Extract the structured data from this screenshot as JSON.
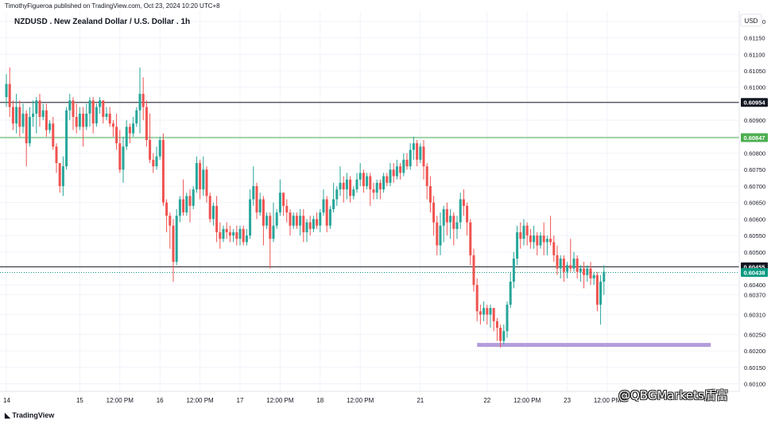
{
  "header": {
    "published": "TimothyFigueroa published on TradingView.com, Oct 23, 2024 10:20 UTC+8"
  },
  "footer": {
    "logo": "TradingView",
    "watermark": "@QBGMarkets盾富"
  },
  "colors": {
    "up": "#26a69a",
    "down": "#ef5350",
    "level_dark": "#131722",
    "level_green": "#4caf50",
    "current": "#089981",
    "zone": "#b39ddb"
  },
  "chart_data": {
    "type": "candlestick",
    "title": "NZDUSD . New Zealand Dollar / U.S. Dollar . 1h",
    "currency": "USD",
    "ylim": [
      0.60077,
      0.61231
    ],
    "yticks": [
      "0.61200",
      "0.61150",
      "0.61100",
      "0.61050",
      "0.61000",
      "0.60950",
      "0.60900",
      "0.60850",
      "0.60800",
      "0.60750",
      "0.60700",
      "0.60650",
      "0.60600",
      "0.60550",
      "0.60500",
      "0.60450",
      "0.60400",
      "0.60370",
      "0.60310",
      "0.60250",
      "0.60200",
      "0.60150",
      "0.60100"
    ],
    "ytick_values": [
      0.612,
      0.6115,
      0.611,
      0.6105,
      0.61,
      0.6095,
      0.609,
      0.6085,
      0.608,
      0.6075,
      0.607,
      0.6065,
      0.606,
      0.6055,
      0.605,
      0.6045,
      0.604,
      0.6037,
      0.6031,
      0.6025,
      0.602,
      0.6015,
      0.601
    ],
    "xticks": [
      {
        "label": "14",
        "bar": 0
      },
      {
        "label": "15",
        "bar": 22
      },
      {
        "label": "12:00 PM",
        "bar": 34
      },
      {
        "label": "16",
        "bar": 46
      },
      {
        "label": "12:00 PM",
        "bar": 58
      },
      {
        "label": "17",
        "bar": 70
      },
      {
        "label": "12:00 PM",
        "bar": 82
      },
      {
        "label": "18",
        "bar": 94
      },
      {
        "label": "12:00 PM",
        "bar": 106
      },
      {
        "label": "21",
        "bar": 124
      },
      {
        "label": "22",
        "bar": 144
      },
      {
        "label": "12:00 PM",
        "bar": 156
      },
      {
        "label": "23",
        "bar": 168
      },
      {
        "label": "12:00 PM",
        "bar": 180
      }
    ],
    "levels": [
      {
        "label": "0.60954",
        "value": 0.60954,
        "style": "dark"
      },
      {
        "label": "0.60847",
        "value": 0.60847,
        "style": "green"
      },
      {
        "label": "0.60455",
        "value": 0.60455,
        "style": "dark"
      },
      {
        "label": "0.60438",
        "value": 0.60438,
        "style": "current"
      }
    ],
    "zone": {
      "value": 0.60218,
      "bar_from": 141,
      "bar_to": 211
    },
    "candles": [
      [
        0.6097,
        0.6101,
        0.6104,
        0.6094
      ],
      [
        0.6101,
        0.6094,
        0.6106,
        0.6091
      ],
      [
        0.6094,
        0.6089,
        0.6096,
        0.6087
      ],
      [
        0.6089,
        0.6094,
        0.6098,
        0.6086
      ],
      [
        0.6094,
        0.6088,
        0.6096,
        0.6085
      ],
      [
        0.6088,
        0.6092,
        0.6095,
        0.6086
      ],
      [
        0.6092,
        0.6083,
        0.6093,
        0.6076
      ],
      [
        0.6083,
        0.6091,
        0.6094,
        0.6082
      ],
      [
        0.6091,
        0.6092,
        0.6096,
        0.6088
      ],
      [
        0.6092,
        0.6096,
        0.6097,
        0.6086
      ],
      [
        0.6096,
        0.6091,
        0.6098,
        0.6088
      ],
      [
        0.6091,
        0.6093,
        0.6095,
        0.609
      ],
      [
        0.6093,
        0.6087,
        0.6095,
        0.6085
      ],
      [
        0.6087,
        0.6089,
        0.609,
        0.6086
      ],
      [
        0.6089,
        0.6082,
        0.6091,
        0.6081
      ],
      [
        0.6082,
        0.6077,
        0.6083,
        0.6074
      ],
      [
        0.6077,
        0.607,
        0.6077,
        0.6068
      ],
      [
        0.607,
        0.6076,
        0.6079,
        0.6067
      ],
      [
        0.6076,
        0.6093,
        0.6094,
        0.6075
      ],
      [
        0.6093,
        0.6096,
        0.6098,
        0.609
      ],
      [
        0.6096,
        0.6091,
        0.6097,
        0.6087
      ],
      [
        0.6091,
        0.6088,
        0.6095,
        0.6086
      ],
      [
        0.6088,
        0.6092,
        0.6094,
        0.6087
      ],
      [
        0.6092,
        0.6088,
        0.6094,
        0.6082
      ],
      [
        0.6088,
        0.6092,
        0.6095,
        0.6087
      ],
      [
        0.6092,
        0.6096,
        0.6097,
        0.6088
      ],
      [
        0.6096,
        0.6089,
        0.6097,
        0.6086
      ],
      [
        0.6089,
        0.6094,
        0.6095,
        0.6088
      ],
      [
        0.6094,
        0.6096,
        0.6097,
        0.6092
      ],
      [
        0.6096,
        0.6091,
        0.6096,
        0.6089
      ],
      [
        0.6091,
        0.6092,
        0.6094,
        0.609
      ],
      [
        0.6092,
        0.6089,
        0.6094,
        0.6088
      ],
      [
        0.6089,
        0.6088,
        0.609,
        0.6085
      ],
      [
        0.6088,
        0.6083,
        0.6092,
        0.6081
      ],
      [
        0.6083,
        0.6075,
        0.6087,
        0.6074
      ],
      [
        0.6075,
        0.6082,
        0.6085,
        0.6071
      ],
      [
        0.6082,
        0.6088,
        0.609,
        0.6081
      ],
      [
        0.6088,
        0.6086,
        0.6089,
        0.6083
      ],
      [
        0.6086,
        0.6089,
        0.6091,
        0.6085
      ],
      [
        0.6089,
        0.6093,
        0.6094,
        0.6088
      ],
      [
        0.6093,
        0.6098,
        0.6106,
        0.6086
      ],
      [
        0.6098,
        0.6094,
        0.6103,
        0.609
      ],
      [
        0.6094,
        0.6084,
        0.6096,
        0.6082
      ],
      [
        0.6084,
        0.6078,
        0.6092,
        0.6077
      ],
      [
        0.6078,
        0.6076,
        0.608,
        0.6074
      ],
      [
        0.6076,
        0.6079,
        0.6082,
        0.6075
      ],
      [
        0.6079,
        0.6084,
        0.6085,
        0.6078
      ],
      [
        0.6084,
        0.6065,
        0.6086,
        0.6064
      ],
      [
        0.6065,
        0.6061,
        0.6066,
        0.6056
      ],
      [
        0.6061,
        0.6058,
        0.6062,
        0.6051
      ],
      [
        0.6058,
        0.6047,
        0.606,
        0.6041
      ],
      [
        0.6047,
        0.6061,
        0.6063,
        0.6046
      ],
      [
        0.6061,
        0.6066,
        0.6067,
        0.6059
      ],
      [
        0.6066,
        0.6062,
        0.6072,
        0.6061
      ],
      [
        0.6062,
        0.6067,
        0.6068,
        0.6061
      ],
      [
        0.6067,
        0.6064,
        0.6069,
        0.6059
      ],
      [
        0.6064,
        0.6069,
        0.607,
        0.6063
      ],
      [
        0.6069,
        0.6077,
        0.6079,
        0.6068
      ],
      [
        0.6077,
        0.6069,
        0.6078,
        0.6066
      ],
      [
        0.6069,
        0.6075,
        0.6079,
        0.6067
      ],
      [
        0.6075,
        0.6067,
        0.6076,
        0.6065
      ],
      [
        0.6067,
        0.606,
        0.6068,
        0.6059
      ],
      [
        0.606,
        0.6064,
        0.6065,
        0.6058
      ],
      [
        0.6064,
        0.6056,
        0.6067,
        0.6053
      ],
      [
        0.6056,
        0.6054,
        0.6059,
        0.6051
      ],
      [
        0.6054,
        0.6057,
        0.6058,
        0.6053
      ],
      [
        0.6057,
        0.6056,
        0.6059,
        0.6054
      ],
      [
        0.6056,
        0.6055,
        0.6058,
        0.6053
      ],
      [
        0.6055,
        0.6056,
        0.6057,
        0.6053
      ],
      [
        0.6056,
        0.6054,
        0.6058,
        0.6052
      ],
      [
        0.6054,
        0.6057,
        0.6058,
        0.6052
      ],
      [
        0.6057,
        0.6053,
        0.6058,
        0.6052
      ],
      [
        0.6053,
        0.6055,
        0.6057,
        0.6052
      ],
      [
        0.6055,
        0.6066,
        0.6069,
        0.6054
      ],
      [
        0.6066,
        0.607,
        0.6076,
        0.6064
      ],
      [
        0.607,
        0.6062,
        0.6071,
        0.606
      ],
      [
        0.6062,
        0.6066,
        0.6068,
        0.6061
      ],
      [
        0.6066,
        0.6058,
        0.6067,
        0.6052
      ],
      [
        0.6058,
        0.6061,
        0.6062,
        0.6057
      ],
      [
        0.6061,
        0.6054,
        0.6062,
        0.6045
      ],
      [
        0.6054,
        0.6058,
        0.6065,
        0.6053
      ],
      [
        0.6058,
        0.6062,
        0.6063,
        0.6057
      ],
      [
        0.6062,
        0.6068,
        0.6072,
        0.6061
      ],
      [
        0.6068,
        0.6064,
        0.6068,
        0.6061
      ],
      [
        0.6064,
        0.6062,
        0.6066,
        0.6059
      ],
      [
        0.6062,
        0.6058,
        0.6063,
        0.6055
      ],
      [
        0.6058,
        0.6061,
        0.6062,
        0.6057
      ],
      [
        0.6061,
        0.6058,
        0.6062,
        0.6057
      ],
      [
        0.6058,
        0.6061,
        0.6063,
        0.6055
      ],
      [
        0.6061,
        0.6056,
        0.6063,
        0.6053
      ],
      [
        0.6056,
        0.6059,
        0.606,
        0.6053
      ],
      [
        0.6059,
        0.6057,
        0.6061,
        0.6055
      ],
      [
        0.6057,
        0.606,
        0.6061,
        0.6056
      ],
      [
        0.606,
        0.6058,
        0.6062,
        0.6057
      ],
      [
        0.6058,
        0.6062,
        0.6063,
        0.6056
      ],
      [
        0.6062,
        0.6066,
        0.6069,
        0.6061
      ],
      [
        0.6066,
        0.6058,
        0.6067,
        0.6056
      ],
      [
        0.6058,
        0.6063,
        0.6064,
        0.6057
      ],
      [
        0.6063,
        0.6066,
        0.6071,
        0.6062
      ],
      [
        0.6066,
        0.6069,
        0.607,
        0.6064
      ],
      [
        0.6069,
        0.6071,
        0.6076,
        0.6067
      ],
      [
        0.6071,
        0.6069,
        0.6073,
        0.6065
      ],
      [
        0.6069,
        0.6072,
        0.6074,
        0.6066
      ],
      [
        0.6072,
        0.6067,
        0.6073,
        0.6065
      ],
      [
        0.6067,
        0.6069,
        0.607,
        0.6066
      ],
      [
        0.6069,
        0.6072,
        0.6074,
        0.6068
      ],
      [
        0.6072,
        0.6074,
        0.6077,
        0.607
      ],
      [
        0.6074,
        0.607,
        0.6075,
        0.6068
      ],
      [
        0.607,
        0.6073,
        0.6074,
        0.6069
      ],
      [
        0.6073,
        0.6069,
        0.6074,
        0.6064
      ],
      [
        0.6069,
        0.6068,
        0.6071,
        0.6066
      ],
      [
        0.6068,
        0.6071,
        0.6072,
        0.6066
      ],
      [
        0.6071,
        0.6069,
        0.6072,
        0.6066
      ],
      [
        0.6069,
        0.6073,
        0.6074,
        0.6068
      ],
      [
        0.6073,
        0.6071,
        0.6074,
        0.607
      ],
      [
        0.6071,
        0.6075,
        0.6077,
        0.607
      ],
      [
        0.6075,
        0.6073,
        0.6077,
        0.6071
      ],
      [
        0.6073,
        0.6076,
        0.6078,
        0.6072
      ],
      [
        0.6076,
        0.6074,
        0.6077,
        0.6072
      ],
      [
        0.6074,
        0.6078,
        0.608,
        0.6073
      ],
      [
        0.6078,
        0.6076,
        0.608,
        0.6075
      ],
      [
        0.6076,
        0.6081,
        0.6083,
        0.6075
      ],
      [
        0.6081,
        0.6083,
        0.6085,
        0.6078
      ],
      [
        0.6083,
        0.6078,
        0.6084,
        0.6076
      ],
      [
        0.6078,
        0.6082,
        0.6083,
        0.6077
      ],
      [
        0.6082,
        0.6076,
        0.6084,
        0.6072
      ],
      [
        0.6076,
        0.607,
        0.6077,
        0.6066
      ],
      [
        0.607,
        0.6065,
        0.6073,
        0.6062
      ],
      [
        0.6065,
        0.6059,
        0.6067,
        0.6055
      ],
      [
        0.6059,
        0.6052,
        0.6061,
        0.6049
      ],
      [
        0.6052,
        0.6058,
        0.6062,
        0.6049
      ],
      [
        0.6058,
        0.6063,
        0.6064,
        0.6053
      ],
      [
        0.6063,
        0.6059,
        0.6065,
        0.6055
      ],
      [
        0.6059,
        0.6061,
        0.6063,
        0.6054
      ],
      [
        0.6061,
        0.6057,
        0.6062,
        0.6052
      ],
      [
        0.6057,
        0.6059,
        0.6061,
        0.6054
      ],
      [
        0.6059,
        0.6066,
        0.6068,
        0.6057
      ],
      [
        0.6066,
        0.6064,
        0.6069,
        0.6061
      ],
      [
        0.6064,
        0.6059,
        0.6065,
        0.6055
      ],
      [
        0.6059,
        0.6049,
        0.606,
        0.6046
      ],
      [
        0.6049,
        0.604,
        0.6051,
        0.6038
      ],
      [
        0.604,
        0.6032,
        0.6042,
        0.6029
      ],
      [
        0.6032,
        0.6031,
        0.6034,
        0.6028
      ],
      [
        0.6031,
        0.6033,
        0.6035,
        0.6029
      ],
      [
        0.6033,
        0.6031,
        0.6034,
        0.6028
      ],
      [
        0.6031,
        0.6033,
        0.6034,
        0.6027
      ],
      [
        0.6033,
        0.6029,
        0.6033,
        0.6026
      ],
      [
        0.6029,
        0.6027,
        0.603,
        0.6023
      ],
      [
        0.6027,
        0.6023,
        0.6028,
        0.6021
      ],
      [
        0.6023,
        0.6026,
        0.6028,
        0.6022
      ],
      [
        0.6026,
        0.6034,
        0.6035,
        0.6024
      ],
      [
        0.6034,
        0.6041,
        0.6044,
        0.6033
      ],
      [
        0.6041,
        0.6048,
        0.605,
        0.6039
      ],
      [
        0.6048,
        0.6056,
        0.6058,
        0.6046
      ],
      [
        0.6056,
        0.6054,
        0.6059,
        0.6051
      ],
      [
        0.6054,
        0.6058,
        0.606,
        0.6052
      ],
      [
        0.6058,
        0.6055,
        0.6059,
        0.6052
      ],
      [
        0.6055,
        0.6053,
        0.6057,
        0.6051
      ],
      [
        0.6053,
        0.6055,
        0.6058,
        0.6051
      ],
      [
        0.6055,
        0.6052,
        0.6056,
        0.6049
      ],
      [
        0.6052,
        0.6055,
        0.6056,
        0.6051
      ],
      [
        0.6055,
        0.6053,
        0.6059,
        0.6049
      ],
      [
        0.6053,
        0.6054,
        0.6055,
        0.6049
      ],
      [
        0.6054,
        0.6053,
        0.6061,
        0.6052
      ],
      [
        0.6053,
        0.6049,
        0.6055,
        0.6047
      ],
      [
        0.6049,
        0.6045,
        0.6052,
        0.6043
      ],
      [
        0.6045,
        0.6048,
        0.6049,
        0.6042
      ],
      [
        0.6048,
        0.6044,
        0.6049,
        0.6041
      ],
      [
        0.6044,
        0.6046,
        0.6047,
        0.6042
      ],
      [
        0.6046,
        0.6045,
        0.6054,
        0.6044
      ],
      [
        0.6045,
        0.6048,
        0.605,
        0.6044
      ],
      [
        0.6048,
        0.6044,
        0.6049,
        0.6042
      ],
      [
        0.6044,
        0.6045,
        0.6046,
        0.6041
      ],
      [
        0.6045,
        0.6043,
        0.6047,
        0.6039
      ],
      [
        0.6043,
        0.6045,
        0.6046,
        0.6041
      ],
      [
        0.6045,
        0.6042,
        0.6047,
        0.604
      ],
      [
        0.6042,
        0.6043,
        0.6044,
        0.604
      ],
      [
        0.6043,
        0.6034,
        0.6044,
        0.6032
      ],
      [
        0.6034,
        0.6041,
        0.6043,
        0.6028
      ],
      [
        0.6041,
        0.6044,
        0.6046,
        0.6037
      ]
    ]
  }
}
